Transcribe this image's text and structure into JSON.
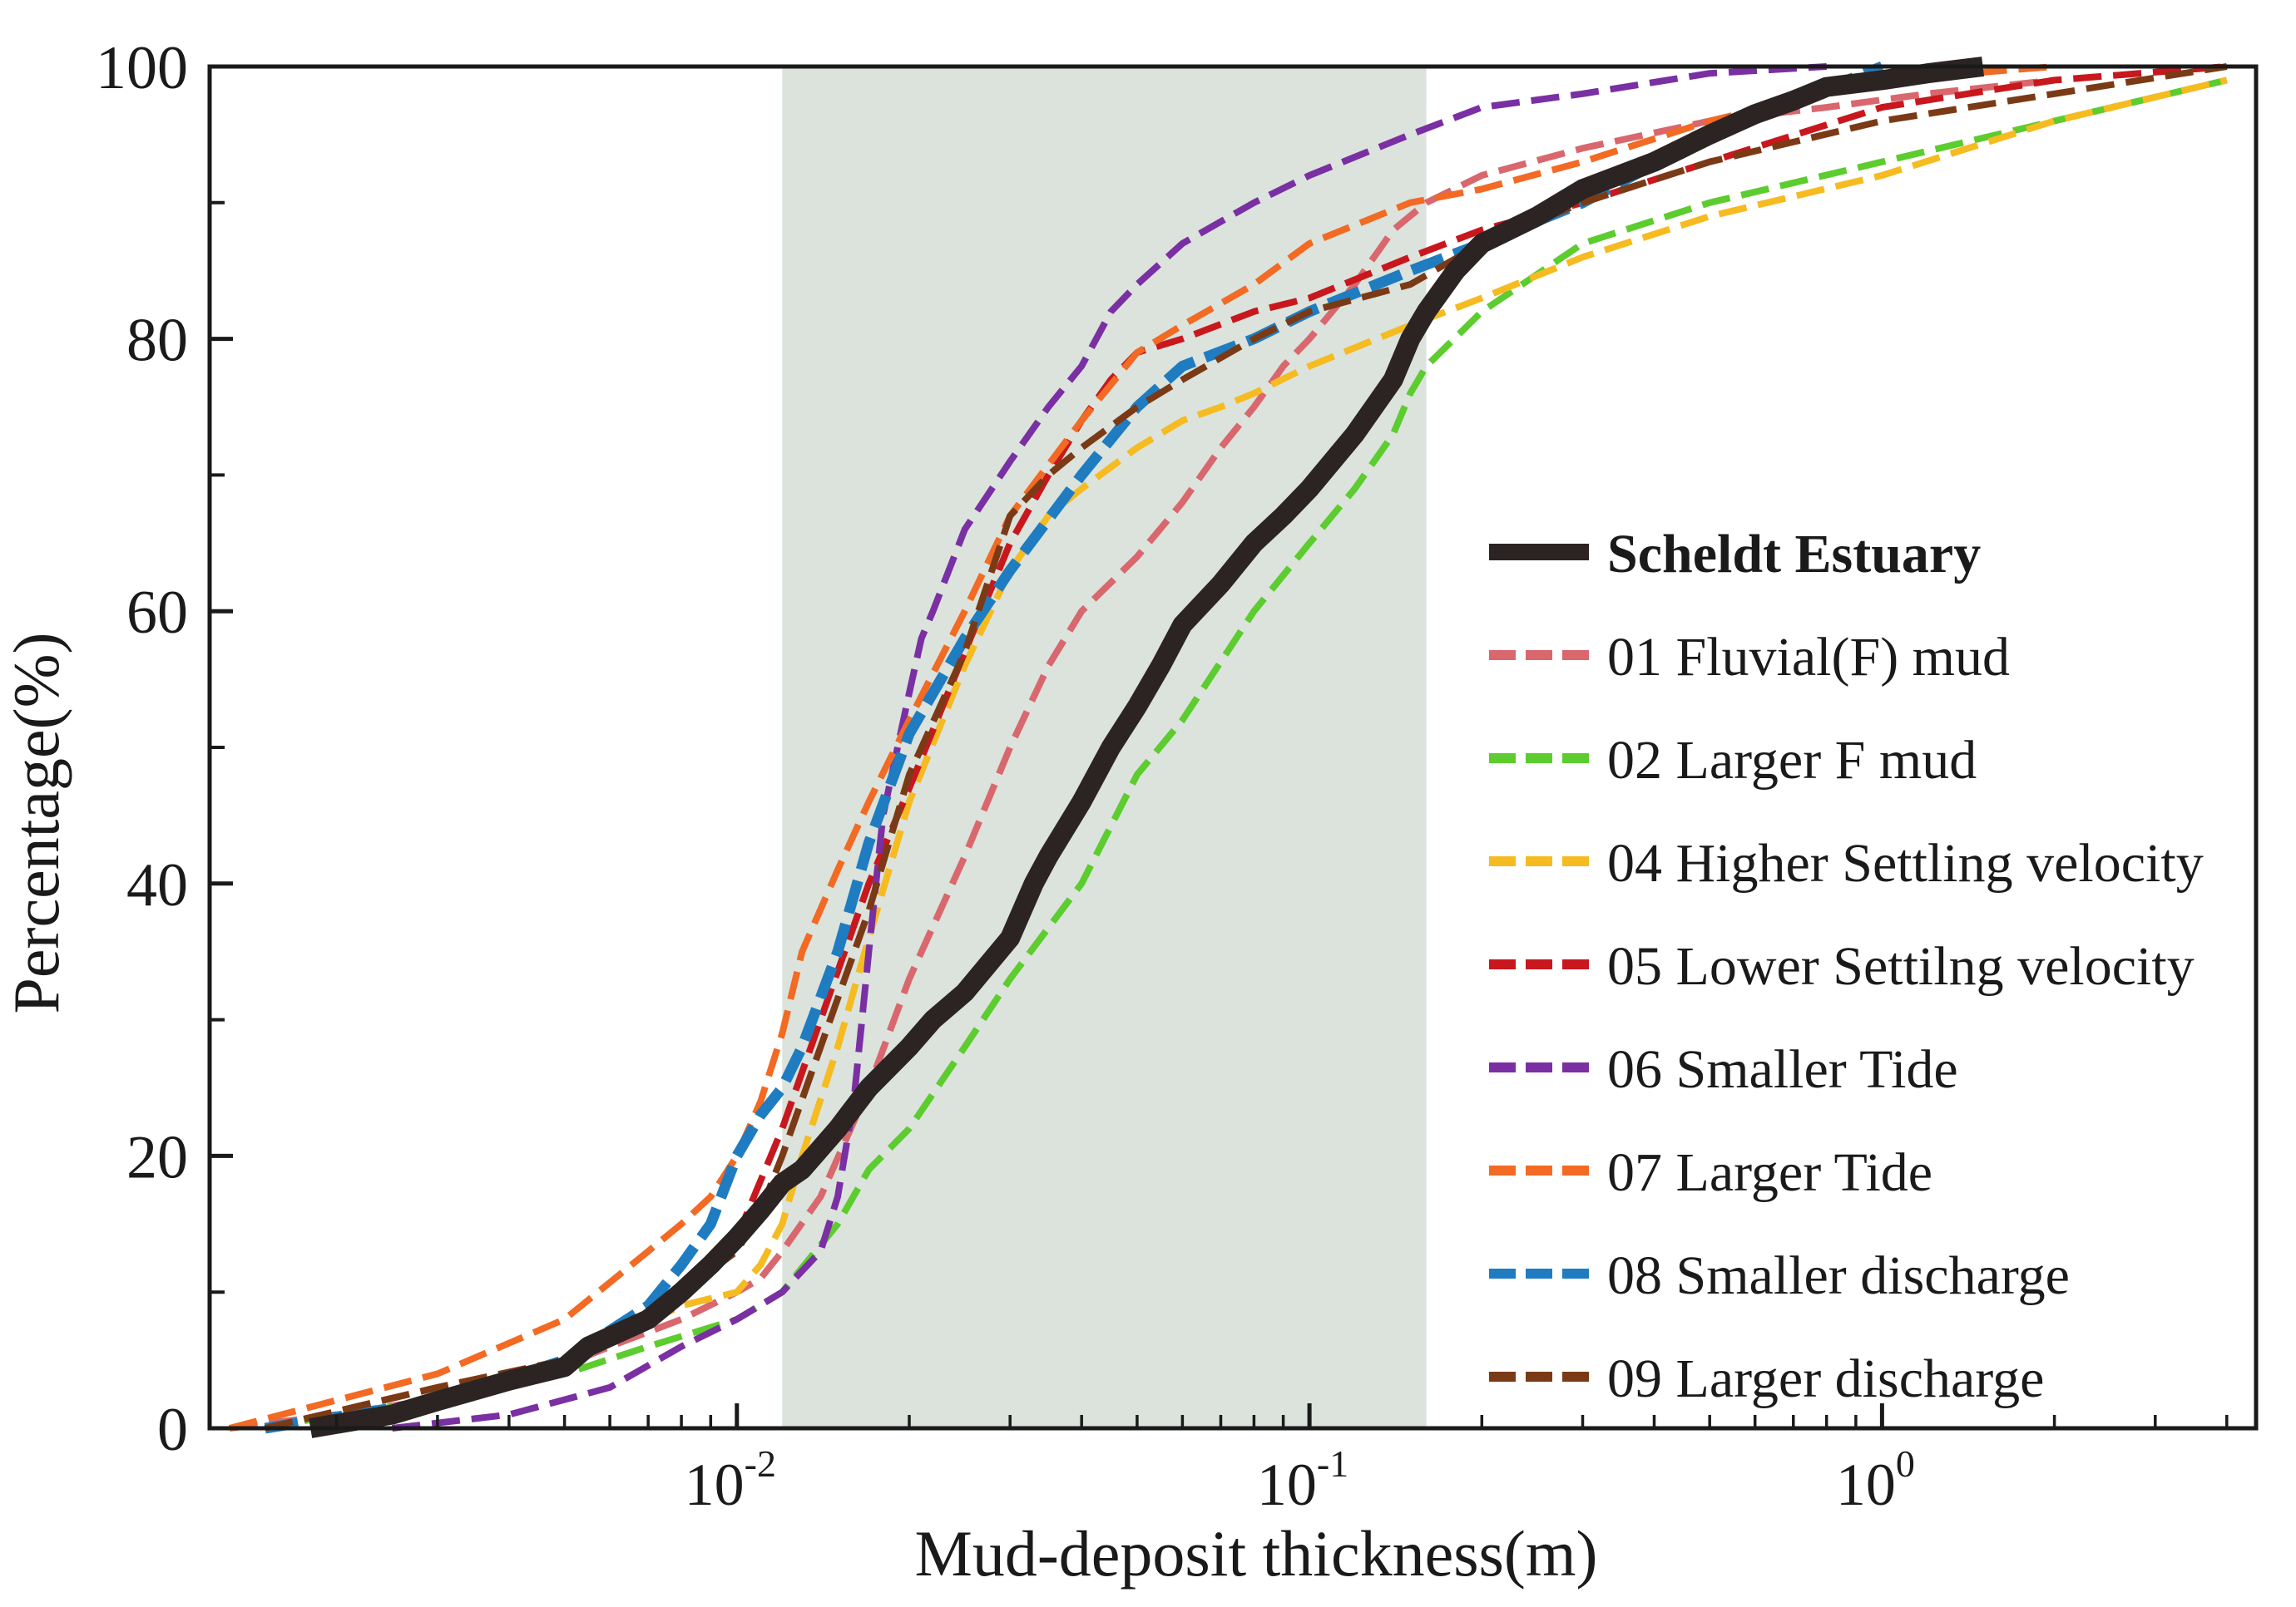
{
  "chart_data": {
    "type": "line",
    "title": "",
    "xlabel": "Mud-deposit thickness(m)",
    "ylabel": "Percentage(%)",
    "x_scale": "log",
    "xlim": [
      0.0012,
      4.5
    ],
    "ylim": [
      0,
      100
    ],
    "x_ticks": [
      {
        "value": 0.01,
        "base": "10",
        "exp": "-2"
      },
      {
        "value": 0.1,
        "base": "10",
        "exp": "-1"
      },
      {
        "value": 1,
        "base": "10",
        "exp": "0"
      }
    ],
    "y_ticks": [
      {
        "value": 0,
        "label": "0"
      },
      {
        "value": 20,
        "label": "20"
      },
      {
        "value": 40,
        "label": "40"
      },
      {
        "value": 60,
        "label": "60"
      },
      {
        "value": 80,
        "label": "80"
      },
      {
        "value": 100,
        "label": "100"
      }
    ],
    "shaded_region": {
      "x_start": 0.012,
      "x_end": 0.16,
      "color": "#dbe3dc"
    },
    "legend_position": "lower-right",
    "series": [
      {
        "name": "Scheldt Estuary",
        "color": "#2b2422",
        "style": "solid",
        "bold": true,
        "x": [
          0.0018,
          0.0025,
          0.003,
          0.004,
          0.005,
          0.0055,
          0.007,
          0.008,
          0.009,
          0.01,
          0.011,
          0.012,
          0.013,
          0.015,
          0.017,
          0.02,
          0.022,
          0.025,
          0.03,
          0.033,
          0.035,
          0.04,
          0.045,
          0.05,
          0.055,
          0.06,
          0.07,
          0.08,
          0.09,
          0.1,
          0.12,
          0.14,
          0.15,
          0.16,
          0.18,
          0.2,
          0.25,
          0.3,
          0.4,
          0.5,
          0.6,
          0.7,
          0.8,
          1.0,
          1.2,
          1.5
        ],
        "y": [
          0,
          1,
          2,
          3.5,
          4.5,
          6,
          8,
          10,
          12,
          14,
          16,
          18,
          19,
          22,
          25,
          28,
          30,
          32,
          36,
          40,
          42,
          46,
          50,
          53,
          56,
          59,
          62,
          65,
          67,
          69,
          73,
          77,
          80,
          82,
          85,
          87,
          89,
          91,
          93,
          95,
          96.5,
          97.5,
          98.5,
          99,
          99.5,
          100
        ]
      },
      {
        "name": "01 Fluvial(F)  mud",
        "color": "#d9676e",
        "style": "dashed",
        "x": [
          0.0013,
          0.002,
          0.004,
          0.006,
          0.008,
          0.01,
          0.011,
          0.012,
          0.014,
          0.017,
          0.02,
          0.025,
          0.03,
          0.035,
          0.04,
          0.05,
          0.06,
          0.07,
          0.08,
          0.09,
          0.1,
          0.12,
          0.14,
          0.16,
          0.2,
          0.3,
          0.5,
          0.8,
          1.2,
          2.0
        ],
        "y": [
          0,
          1,
          3,
          6,
          8,
          10,
          11,
          13,
          17,
          25,
          33,
          42,
          50,
          56,
          60,
          64,
          68,
          72,
          75,
          78,
          80,
          84,
          88,
          90,
          92,
          94,
          96,
          97,
          98,
          99
        ]
      },
      {
        "name": "02 Larger F mud",
        "color": "#5ccc2e",
        "style": "dashed",
        "x": [
          0.0015,
          0.002,
          0.003,
          0.005,
          0.007,
          0.01,
          0.012,
          0.015,
          0.017,
          0.02,
          0.025,
          0.03,
          0.04,
          0.05,
          0.06,
          0.08,
          0.1,
          0.12,
          0.14,
          0.15,
          0.16,
          0.2,
          0.3,
          0.5,
          1.0,
          2.0,
          4.0
        ],
        "y": [
          0,
          1,
          2,
          4,
          6,
          8,
          10,
          15,
          19,
          22,
          28,
          33,
          40,
          48,
          52,
          60,
          65,
          69,
          73,
          76,
          78,
          82,
          87,
          90,
          93,
          96,
          99
        ]
      },
      {
        "name": "04 Higher Settling velocity",
        "color": "#f5bb21",
        "style": "dashed",
        "x": [
          0.0015,
          0.003,
          0.005,
          0.008,
          0.01,
          0.011,
          0.012,
          0.013,
          0.015,
          0.017,
          0.02,
          0.025,
          0.03,
          0.035,
          0.04,
          0.05,
          0.06,
          0.07,
          0.08,
          0.1,
          0.15,
          0.2,
          0.3,
          0.5,
          1.0,
          2.0,
          4.0
        ],
        "y": [
          0,
          3,
          5,
          9,
          10,
          12,
          15,
          20,
          28,
          36,
          46,
          56,
          63,
          67,
          69,
          72,
          74,
          75,
          76,
          78,
          81,
          83,
          86,
          89,
          92,
          96,
          99
        ]
      },
      {
        "name": "05 Lower Settilng velocity",
        "color": "#c8171d",
        "style": "dashed",
        "x": [
          0.0015,
          0.003,
          0.005,
          0.008,
          0.01,
          0.012,
          0.014,
          0.017,
          0.02,
          0.025,
          0.03,
          0.035,
          0.04,
          0.045,
          0.05,
          0.06,
          0.08,
          0.1,
          0.15,
          0.2,
          0.3,
          0.5,
          1.0,
          2.0,
          4.0
        ],
        "y": [
          0,
          3,
          5,
          10,
          14,
          22,
          30,
          40,
          47,
          57,
          65,
          70,
          74,
          77,
          79,
          80,
          82,
          83,
          86,
          88,
          90,
          93,
          97,
          99,
          100
        ]
      },
      {
        "name": "06 Smaller Tide",
        "color": "#7a2fa3",
        "style": "dashed",
        "x": [
          0.0025,
          0.004,
          0.006,
          0.008,
          0.01,
          0.012,
          0.014,
          0.015,
          0.016,
          0.017,
          0.018,
          0.02,
          0.021,
          0.022,
          0.025,
          0.03,
          0.035,
          0.04,
          0.045,
          0.05,
          0.06,
          0.08,
          0.1,
          0.15,
          0.2,
          0.3,
          0.5,
          0.8
        ],
        "y": [
          0,
          1,
          3,
          6,
          8,
          10,
          13,
          17,
          24,
          35,
          45,
          54,
          58,
          60,
          66,
          71,
          75,
          78,
          82,
          84,
          87,
          90,
          92,
          95,
          97,
          98,
          99.5,
          100
        ]
      },
      {
        "name": "07 Larger Tide",
        "color": "#f26a23",
        "style": "dashed",
        "x": [
          0.0013,
          0.003,
          0.005,
          0.007,
          0.008,
          0.009,
          0.01,
          0.011,
          0.012,
          0.013,
          0.015,
          0.017,
          0.02,
          0.025,
          0.03,
          0.04,
          0.05,
          0.06,
          0.08,
          0.1,
          0.15,
          0.2,
          0.3,
          0.5,
          1.0,
          2.0
        ],
        "y": [
          0,
          4,
          8,
          13,
          15,
          17,
          20,
          24,
          29,
          35,
          41,
          46,
          52,
          60,
          67,
          74,
          79,
          81,
          84,
          87,
          90,
          91,
          93,
          96,
          99,
          100
        ]
      },
      {
        "name": "08 Smaller discharge",
        "color": "#1f7cc1",
        "style": "dashed",
        "bold": true,
        "x": [
          0.0015,
          0.003,
          0.005,
          0.007,
          0.008,
          0.009,
          0.01,
          0.011,
          0.012,
          0.013,
          0.015,
          0.017,
          0.02,
          0.025,
          0.03,
          0.04,
          0.05,
          0.06,
          0.08,
          0.1,
          0.15,
          0.2,
          0.3,
          0.5,
          1.0
        ],
        "y": [
          0,
          2,
          5,
          9,
          12,
          15,
          20,
          23,
          25,
          28,
          35,
          43,
          51,
          58,
          63,
          70,
          75,
          78,
          80,
          82,
          85,
          87,
          90,
          95,
          100
        ]
      },
      {
        "name": "09 Larger discharge",
        "color": "#7b3a16",
        "style": "dashed",
        "x": [
          0.0015,
          0.003,
          0.005,
          0.008,
          0.01,
          0.011,
          0.012,
          0.014,
          0.017,
          0.02,
          0.025,
          0.03,
          0.035,
          0.04,
          0.05,
          0.06,
          0.08,
          0.1,
          0.15,
          0.2,
          0.3,
          0.5,
          1.0,
          2.0,
          4.0
        ],
        "y": [
          0,
          3,
          5,
          10,
          13,
          16,
          20,
          28,
          38,
          48,
          57,
          67,
          70,
          72,
          75,
          77,
          80,
          82,
          84,
          87,
          90,
          93,
          96,
          98,
          100
        ]
      }
    ]
  }
}
